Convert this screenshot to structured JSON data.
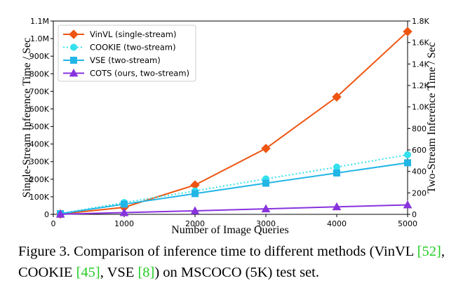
{
  "chart_data": {
    "type": "line",
    "xlabel": "Number of Image Queries",
    "ylabel": "Single-Stream Inference Time / Sec",
    "ylabel_right": "Two-Stream Inference Time / Sec",
    "xlim": [
      0,
      5000
    ],
    "ylim_left": [
      0,
      1100000
    ],
    "ylim_right": [
      0,
      1800
    ],
    "x_ticks": [
      "0",
      "1000",
      "2000",
      "3000",
      "4000",
      "5000"
    ],
    "x_tick_values": [
      0,
      1000,
      2000,
      3000,
      4000,
      5000
    ],
    "y_ticks_left": [
      "0",
      "100K",
      "200K",
      "300K",
      "400K",
      "500K",
      "600K",
      "700K",
      "800K",
      "900K",
      "1.0M",
      "1.1M"
    ],
    "y_tick_values_left": [
      0,
      100000,
      200000,
      300000,
      400000,
      500000,
      600000,
      700000,
      800000,
      900000,
      1000000,
      1100000
    ],
    "y_ticks_right": [
      "0",
      "200",
      "400",
      "600",
      "800",
      "1.0K",
      "1.2K",
      "1.4K",
      "1.6K",
      "1.8K"
    ],
    "y_tick_values_right": [
      0,
      200,
      400,
      600,
      800,
      1000,
      1200,
      1400,
      1600,
      1800
    ],
    "grid": false,
    "legend_position": "top-left",
    "series": [
      {
        "name": "VinVL (single-stream)",
        "axis": "left",
        "color": "#ee5511",
        "marker": "diamond",
        "dash": "solid",
        "x": [
          100,
          1000,
          2000,
          3000,
          4000,
          5000
        ],
        "y": [
          2000,
          40000,
          167000,
          375000,
          668000,
          1040000
        ]
      },
      {
        "name": "COOKIE (two-stream)",
        "axis": "right",
        "color": "#33e0ee",
        "marker": "circle",
        "dash": "dotted",
        "x": [
          100,
          1000,
          2000,
          3000,
          4000,
          5000
        ],
        "y": [
          8,
          110,
          218,
          330,
          440,
          555
        ]
      },
      {
        "name": "VSE (two-stream)",
        "axis": "right",
        "color": "#22b6e6",
        "marker": "square",
        "dash": "solid",
        "x": [
          100,
          1000,
          2000,
          3000,
          4000,
          5000
        ],
        "y": [
          6,
          95,
          193,
          290,
          385,
          480
        ]
      },
      {
        "name": "COTS (ours, two-stream)",
        "axis": "right",
        "color": "#8833dd",
        "marker": "triangle",
        "dash": "solid",
        "x": [
          100,
          1000,
          2000,
          3000,
          4000,
          5000
        ],
        "y": [
          1,
          16,
          33,
          51,
          70,
          88
        ]
      }
    ]
  },
  "caption": {
    "label": "Figure 3.",
    "text_1": "Comparison of inference time to different methods (VinVL ",
    "ref_1": "[52]",
    "text_2": ", COOKIE ",
    "ref_2": "[45]",
    "text_3": ", VSE ",
    "ref_3": "[8]",
    "text_4": ") on MSCOCO (5K) test set."
  }
}
